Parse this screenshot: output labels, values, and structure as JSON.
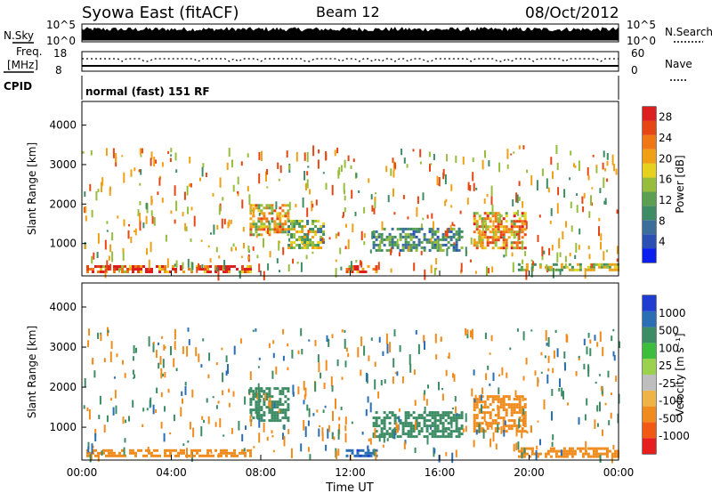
{
  "header": {
    "station": "Syowa East (fitACF)",
    "beam": "Beam 12",
    "date": "08/Oct/2012"
  },
  "top_strip": {
    "nsky_label": "N.Sky",
    "nsky_top_tick": "10^5",
    "nsky_bottom_tick": "10^0",
    "nsearch_label": "N.Search",
    "nsearch_top_tick": "10^5",
    "nsearch_bottom_tick": "10^0",
    "freq_label_1": "Freq.",
    "freq_label_2": "[MHz]",
    "freq_top_tick": "18",
    "freq_bottom_tick": "8",
    "nave_label": "Nave",
    "nave_top_tick": "60",
    "nave_bottom_tick": "0",
    "cpid_label": "CPID",
    "cpid_value": "normal (fast) 151 RF"
  },
  "colors": {
    "power_scale": [
      "#0a1ef0",
      "#2a50b4",
      "#3c6e9c",
      "#3e8c64",
      "#5aa050",
      "#96be3c",
      "#e6d21e",
      "#f0a014",
      "#f07814",
      "#e64614",
      "#dc1e1e"
    ],
    "velocity_scale": [
      "#e61e1e",
      "#f05a14",
      "#f08c1e",
      "#f0b446",
      "#bebebe",
      "#9ad24e",
      "#3cbe3c",
      "#3c8c64",
      "#2a6eb4",
      "#1e3cd2"
    ]
  },
  "chart_data": [
    {
      "type": "heatmap",
      "title": "",
      "xlabel": "",
      "ylabel": "Slant Range [km]",
      "xlim": [
        "00:00",
        "00:00"
      ],
      "ylim": [
        180,
        4600
      ],
      "x_ticks": [
        "00:00",
        "04:00",
        "08:00",
        "12:00",
        "16:00",
        "20:00",
        "00:00"
      ],
      "y_ticks": [
        1000,
        2000,
        3000,
        4000
      ],
      "colorbar": {
        "label": "Power [dB]",
        "ticks": [
          4,
          8,
          12,
          16,
          20,
          24,
          28
        ],
        "range": [
          0,
          30
        ]
      },
      "series": [
        {
          "time_h": [
            0.2,
            7.5
          ],
          "range_km": [
            300,
            450
          ],
          "value": 26
        },
        {
          "time_h": [
            7.5,
            9.2
          ],
          "range_km": [
            1200,
            2000
          ],
          "value": 20
        },
        {
          "time_h": [
            9.2,
            10.8
          ],
          "range_km": [
            900,
            1600
          ],
          "value": 14
        },
        {
          "time_h": [
            11.8,
            13.2
          ],
          "range_km": [
            300,
            450
          ],
          "value": 27
        },
        {
          "time_h": [
            13.0,
            17.0
          ],
          "range_km": [
            800,
            1400
          ],
          "value": 9
        },
        {
          "time_h": [
            17.5,
            19.8
          ],
          "range_km": [
            900,
            1800
          ],
          "value": 21
        },
        {
          "time_h": [
            19.5,
            24.0
          ],
          "range_km": [
            300,
            500
          ],
          "value": 15
        }
      ]
    },
    {
      "type": "heatmap",
      "title": "",
      "xlabel": "Time UT",
      "ylabel": "Slant Range [km]",
      "xlim": [
        "00:00",
        "00:00"
      ],
      "ylim": [
        180,
        4600
      ],
      "x_ticks": [
        "00:00",
        "04:00",
        "08:00",
        "12:00",
        "16:00",
        "20:00",
        "00:00"
      ],
      "y_ticks": [
        1000,
        2000,
        3000,
        4000
      ],
      "colorbar": {
        "label": "Velocity [m s⁻¹]",
        "ticks": [
          1000,
          500,
          100,
          25,
          -25,
          -100,
          -500,
          -1000
        ]
      },
      "series": [
        {
          "time_h": [
            0.2,
            7.5
          ],
          "range_km": [
            300,
            450
          ],
          "value": -200
        },
        {
          "time_h": [
            7.5,
            9.2
          ],
          "range_km": [
            1200,
            2000
          ],
          "value": 300
        },
        {
          "time_h": [
            11.8,
            13.2
          ],
          "range_km": [
            300,
            450
          ],
          "value": 800
        },
        {
          "time_h": [
            13.0,
            17.0
          ],
          "range_km": [
            800,
            1400
          ],
          "value": 150
        },
        {
          "time_h": [
            17.5,
            19.8
          ],
          "range_km": [
            900,
            1800
          ],
          "value": -300
        },
        {
          "time_h": [
            19.5,
            24.0
          ],
          "range_km": [
            300,
            500
          ],
          "value": -150
        }
      ]
    }
  ]
}
